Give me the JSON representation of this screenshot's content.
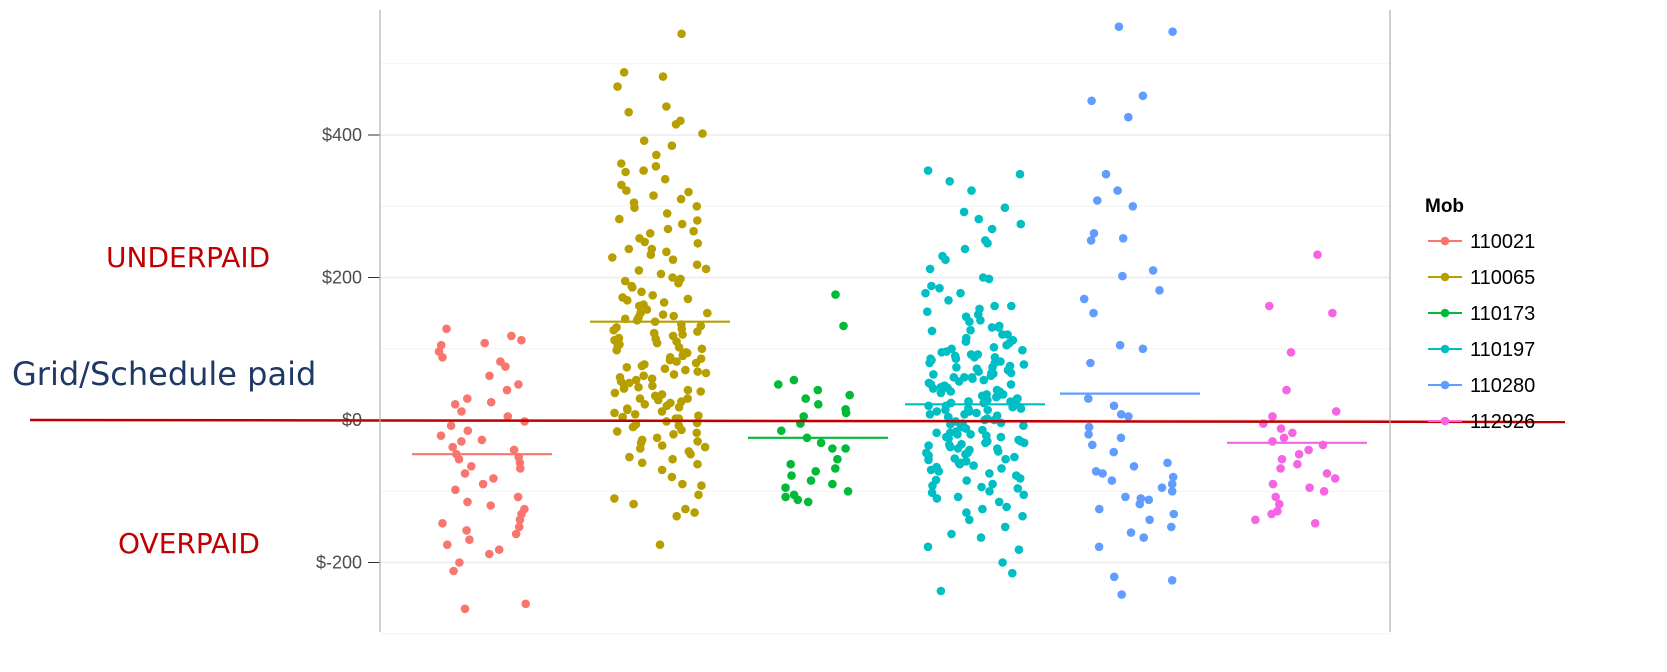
{
  "chart_data": {
    "type": "scatter",
    "subtype": "jitter-strip",
    "ylim": [
      -285,
      580
    ],
    "y_ticks": [
      -200,
      0,
      200,
      400
    ],
    "y_tick_labels": [
      "$-200",
      "$0",
      "$200",
      "$400"
    ],
    "grid": true,
    "legend": {
      "title": "Mob",
      "position": "right"
    },
    "reference_line": {
      "y": 0,
      "color": "#c00000"
    },
    "annotations": [
      {
        "text": "UNDERPAID",
        "color": "#c00000"
      },
      {
        "text": "Grid/Schedule paid",
        "color": "#1f3864"
      },
      {
        "text": "OVERPAID",
        "color": "#c00000"
      }
    ],
    "series": [
      {
        "name": "110021",
        "color": "#F8766D",
        "mean": -48,
        "y": [
          128,
          118,
          112,
          105,
          96,
          88,
          75,
          62,
          50,
          42,
          30,
          22,
          12,
          5,
          -2,
          -8,
          -15,
          -22,
          -30,
          -38,
          -42,
          -48,
          -52,
          -55,
          -60,
          -68,
          -75,
          -82,
          -90,
          -98,
          -108,
          -115,
          -125,
          -132,
          -140,
          -145,
          -150,
          -160,
          -168,
          -175,
          -182,
          -188,
          -200,
          -212,
          -258,
          -265,
          108,
          82,
          25,
          -28,
          -65,
          -120,
          -155
        ]
      },
      {
        "name": "110065",
        "color": "#B79F00",
        "mean": 138,
        "y": [
          542,
          488,
          482,
          468,
          440,
          432,
          415,
          402,
          392,
          385,
          372,
          360,
          348,
          338,
          330,
          322,
          315,
          305,
          298,
          290,
          282,
          275,
          268,
          262,
          255,
          248,
          240,
          232,
          225,
          218,
          212,
          205,
          198,
          192,
          186,
          180,
          175,
          170,
          165,
          160,
          155,
          150,
          146,
          142,
          138,
          134,
          130,
          126,
          122,
          118,
          114,
          110,
          106,
          102,
          98,
          94,
          90,
          86,
          82,
          78,
          74,
          70,
          66,
          62,
          58,
          54,
          50,
          46,
          42,
          38,
          34,
          30,
          26,
          22,
          18,
          14,
          10,
          6,
          2,
          -4,
          -10,
          -18,
          -25,
          -32,
          -40,
          -48,
          -55,
          -62,
          -70,
          -80,
          -92,
          -105,
          -118,
          -125,
          -135,
          -175,
          420,
          356,
          310,
          265,
          228,
          195,
          162,
          140,
          128,
          115,
          100,
          88,
          72,
          60,
          44,
          30,
          16,
          4,
          -6,
          -14,
          -28,
          -36,
          350,
          300,
          250,
          210,
          172,
          150,
          132,
          112,
          95,
          80,
          64,
          48,
          36,
          20,
          8,
          -2,
          -20,
          -44,
          -60,
          -90,
          -110,
          -130,
          320,
          280,
          240,
          200,
          168,
          148,
          124,
          108,
          92,
          76,
          56,
          40,
          24,
          12,
          -8,
          -30,
          -52,
          236,
          188,
          144,
          120,
          104,
          84,
          68,
          52,
          28,
          2,
          -16,
          -38
        ]
      },
      {
        "name": "110173",
        "color": "#00BA38",
        "mean": -25,
        "y": [
          176,
          132,
          56,
          50,
          42,
          35,
          22,
          15,
          5,
          -5,
          -15,
          -25,
          -32,
          -40,
          -55,
          -62,
          -68,
          -72,
          -78,
          -85,
          -90,
          -95,
          -100,
          -105,
          -108,
          -112,
          -115,
          -40,
          30,
          10
        ]
      },
      {
        "name": "110197",
        "color": "#00BFC4",
        "mean": 22,
        "y": [
          350,
          345,
          335,
          298,
          292,
          282,
          275,
          252,
          248,
          240,
          225,
          212,
          198,
          188,
          178,
          168,
          160,
          152,
          145,
          138,
          132,
          126,
          120,
          115,
          110,
          105,
          100,
          96,
          92,
          88,
          84,
          80,
          76,
          72,
          68,
          64,
          60,
          56,
          52,
          48,
          44,
          40,
          36,
          32,
          28,
          24,
          20,
          16,
          12,
          8,
          4,
          0,
          -4,
          -8,
          -12,
          -16,
          -20,
          -24,
          -28,
          -32,
          -36,
          -40,
          -44,
          -48,
          -52,
          -56,
          -60,
          -64,
          -68,
          -72,
          -78,
          -84,
          -90,
          -96,
          -102,
          -108,
          -115,
          -122,
          -130,
          -140,
          -150,
          -165,
          -182,
          -200,
          -215,
          -240,
          322,
          268,
          230,
          185,
          156,
          130,
          112,
          98,
          86,
          74,
          62,
          50,
          38,
          26,
          14,
          2,
          -10,
          -22,
          -34,
          -46,
          -58,
          -70,
          -82,
          -94,
          -110,
          -125,
          86,
          70,
          54,
          42,
          30,
          18,
          6,
          -6,
          -18,
          -30,
          -42,
          -54,
          -66,
          90,
          78,
          66,
          58,
          46,
          34,
          26,
          14,
          10,
          -2,
          -14,
          -26,
          -38,
          -50,
          82,
          74,
          60,
          48,
          36,
          24,
          16,
          4,
          -10,
          -20,
          -32,
          -46,
          140,
          120,
          95,
          65,
          45,
          30,
          20,
          8,
          -5,
          -18,
          -35,
          -60,
          -85,
          -105,
          200,
          160,
          130,
          102,
          88,
          66,
          40,
          22,
          0,
          -30,
          -55,
          -75,
          -100,
          -135,
          178,
          148,
          125,
          108,
          92,
          80,
          60,
          50,
          36,
          26,
          12,
          -6,
          -24,
          -40,
          -62,
          -92,
          -160,
          -178
        ]
      },
      {
        "name": "110280",
        "color": "#619CFF",
        "mean": 37,
        "y": [
          552,
          545,
          455,
          448,
          425,
          345,
          322,
          308,
          300,
          262,
          255,
          252,
          210,
          202,
          182,
          170,
          150,
          105,
          100,
          80,
          30,
          20,
          8,
          -20,
          -25,
          -35,
          -60,
          -65,
          -72,
          -75,
          -80,
          -85,
          -90,
          -95,
          -100,
          -108,
          -112,
          -118,
          -125,
          -132,
          -140,
          -150,
          -158,
          -165,
          -178,
          -220,
          -225,
          -245,
          5,
          -45,
          -110,
          -10
        ]
      },
      {
        "name": "112926",
        "color": "#F564E3",
        "mean": -32,
        "y": [
          232,
          160,
          150,
          95,
          42,
          12,
          5,
          -5,
          -12,
          -18,
          -25,
          -30,
          -35,
          -42,
          -48,
          -55,
          -62,
          -68,
          -75,
          -82,
          -90,
          -95,
          -100,
          -108,
          -118,
          -128,
          -132,
          -140,
          -145
        ]
      }
    ]
  }
}
